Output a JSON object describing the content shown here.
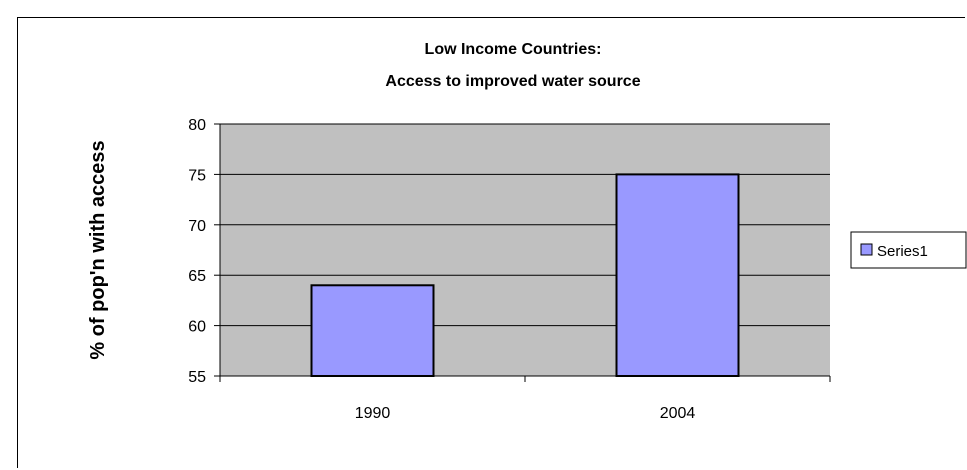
{
  "chart_data": {
    "type": "bar",
    "title_lines": [
      "Low Income Countries:",
      "Access to improved water source"
    ],
    "xlabel": "",
    "ylabel": "% of pop'n with access",
    "categories": [
      "1990",
      "2004"
    ],
    "series": [
      {
        "name": "Series1",
        "values": [
          64,
          75
        ]
      }
    ],
    "ylim": [
      55,
      80
    ],
    "yticks": [
      55,
      60,
      65,
      70,
      75,
      80
    ],
    "grid": true,
    "legend": "right",
    "colors": {
      "bar_fill": "#9999ff",
      "plot_bg": "#c0c0c0",
      "grid": "#000000"
    }
  }
}
